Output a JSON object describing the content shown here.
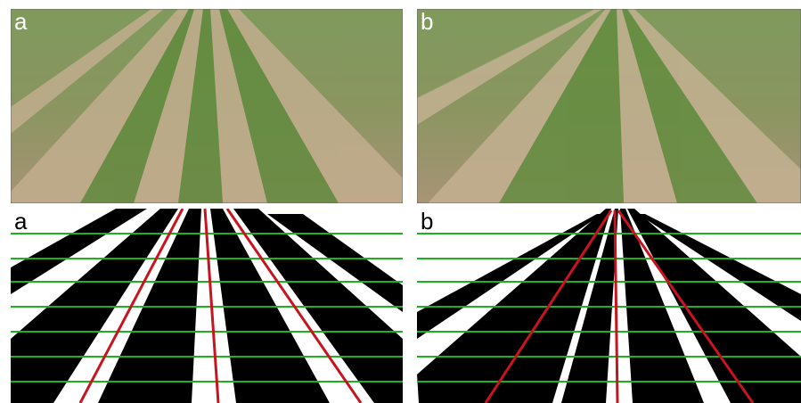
{
  "panels": [
    {
      "label": "a"
    },
    {
      "label": "b"
    },
    {
      "label": "a"
    },
    {
      "label": "b"
    }
  ]
}
